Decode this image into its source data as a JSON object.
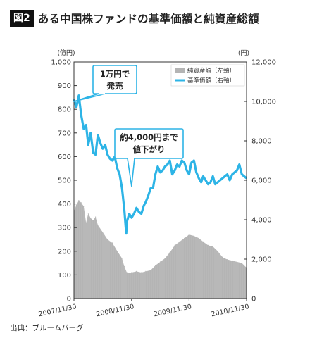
{
  "figure": {
    "number_label": "図2",
    "title": "ある中国株ファンドの基準価額と純資産総額"
  },
  "source": "出典：ブルームバーグ",
  "colors": {
    "nav_line": "#2db4e6",
    "net_assets_area": "#b4b4b4",
    "frame": "#333333",
    "badge_bg": "#111111"
  },
  "chart_data": {
    "type": "area",
    "legend_position": "top-right",
    "grid": false,
    "left_axis": {
      "unit": "(億円)",
      "range": [
        0,
        1000
      ],
      "ticks": [
        "0",
        "100",
        "200",
        "300",
        "400",
        "500",
        "600",
        "700",
        "800",
        "900",
        "1,000"
      ]
    },
    "right_axis": {
      "unit": "(円)",
      "range": [
        0,
        12000
      ],
      "ticks": [
        "0",
        "2,000",
        "4,000",
        "6,000",
        "8,000",
        "10,000",
        "12,000"
      ]
    },
    "x_axis": {
      "range": [
        "2007-11-30",
        "2010-11-30"
      ],
      "ticks": [
        "2007/11/30",
        "2008/11/30",
        "2009/11/30",
        "2010/11/30"
      ]
    },
    "series": [
      {
        "name": "純資産額（左軸）",
        "type": "area",
        "axis": "left",
        "x": [
          "2007-11-30",
          "2007-12-15",
          "2007-12-31",
          "2008-01-15",
          "2008-01-31",
          "2008-02-15",
          "2008-02-29",
          "2008-03-15",
          "2008-03-31",
          "2008-04-15",
          "2008-04-30",
          "2008-05-31",
          "2008-06-30",
          "2008-07-31",
          "2008-08-31",
          "2008-09-30",
          "2008-10-15",
          "2008-10-31",
          "2008-11-30",
          "2008-12-31",
          "2009-01-31",
          "2009-02-28",
          "2009-03-31",
          "2009-04-30",
          "2009-05-31",
          "2009-06-30",
          "2009-07-31",
          "2009-08-31",
          "2009-09-30",
          "2009-10-31",
          "2009-11-30",
          "2009-12-31",
          "2010-01-31",
          "2010-02-28",
          "2010-03-31",
          "2010-04-30",
          "2010-05-31",
          "2010-06-30",
          "2010-07-31",
          "2010-08-31",
          "2010-09-30",
          "2010-10-31",
          "2010-11-30"
        ],
        "values": [
          370,
          395,
          415,
          405,
          390,
          320,
          360,
          340,
          330,
          345,
          310,
          280,
          250,
          235,
          200,
          170,
          135,
          110,
          110,
          115,
          110,
          115,
          120,
          140,
          155,
          170,
          195,
          225,
          240,
          255,
          270,
          265,
          255,
          240,
          225,
          220,
          200,
          175,
          165,
          160,
          155,
          150,
          130
        ]
      },
      {
        "name": "基準価額（右軸）",
        "type": "line",
        "axis": "right",
        "x": [
          "2007-11-30",
          "2007-12-15",
          "2007-12-31",
          "2008-01-15",
          "2008-01-31",
          "2008-02-15",
          "2008-02-29",
          "2008-03-15",
          "2008-03-31",
          "2008-04-15",
          "2008-04-30",
          "2008-05-15",
          "2008-05-31",
          "2008-06-15",
          "2008-06-30",
          "2008-07-15",
          "2008-07-31",
          "2008-08-15",
          "2008-08-31",
          "2008-09-15",
          "2008-09-30",
          "2008-10-15",
          "2008-10-27",
          "2008-10-31",
          "2008-11-15",
          "2008-11-30",
          "2008-12-15",
          "2008-12-31",
          "2009-01-15",
          "2009-01-31",
          "2009-02-15",
          "2009-02-28",
          "2009-03-15",
          "2009-03-31",
          "2009-04-15",
          "2009-04-30",
          "2009-05-15",
          "2009-05-31",
          "2009-06-15",
          "2009-06-30",
          "2009-07-15",
          "2009-07-31",
          "2009-08-15",
          "2009-08-31",
          "2009-09-15",
          "2009-09-30",
          "2009-10-15",
          "2009-10-31",
          "2009-11-15",
          "2009-11-30",
          "2009-12-15",
          "2009-12-31",
          "2010-01-15",
          "2010-01-31",
          "2010-02-15",
          "2010-02-28",
          "2010-03-15",
          "2010-03-31",
          "2010-04-15",
          "2010-04-30",
          "2010-05-15",
          "2010-05-31",
          "2010-06-15",
          "2010-06-30",
          "2010-07-15",
          "2010-07-31",
          "2010-08-15",
          "2010-08-31",
          "2010-09-15",
          "2010-09-30",
          "2010-10-15",
          "2010-10-31",
          "2010-11-15",
          "2010-11-30"
        ],
        "values": [
          10100,
          9700,
          10300,
          9300,
          8600,
          8800,
          7800,
          8400,
          7400,
          7300,
          8300,
          7900,
          7600,
          7800,
          7300,
          7100,
          7000,
          7200,
          6600,
          6300,
          5600,
          4500,
          3300,
          3900,
          4300,
          4100,
          4300,
          4600,
          4400,
          4300,
          4700,
          4900,
          5200,
          5600,
          5600,
          6300,
          6700,
          6400,
          6500,
          6700,
          6800,
          7000,
          6300,
          6500,
          6800,
          6700,
          7000,
          6900,
          6500,
          6300,
          6900,
          7000,
          6400,
          6100,
          5900,
          6200,
          6000,
          5800,
          5900,
          6200,
          5800,
          5900,
          6000,
          6100,
          6200,
          6300,
          6000,
          6300,
          6400,
          6500,
          6800,
          6300,
          6200,
          6100
        ]
      }
    ],
    "annotations": [
      {
        "text": [
          "1万円で",
          "発売"
        ],
        "target": {
          "x": "2007-11-30",
          "y": 10000,
          "axis": "right"
        }
      },
      {
        "text": [
          "約4,000円まで",
          "値下がり"
        ],
        "target": {
          "x": "2008-11-30",
          "y": 5700,
          "axis": "right"
        }
      }
    ]
  }
}
